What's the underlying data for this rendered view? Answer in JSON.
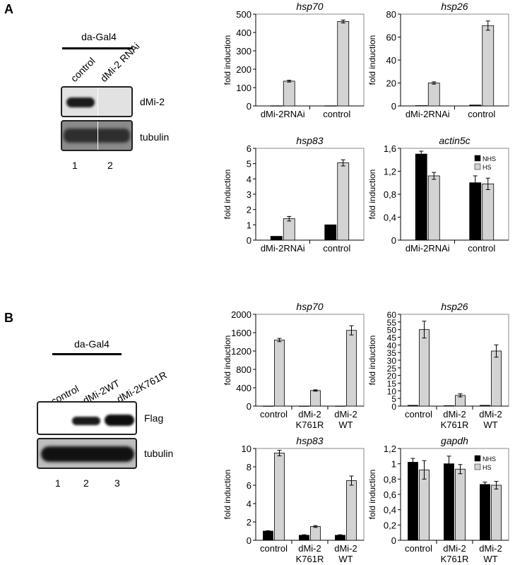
{
  "panelA": {
    "letter": "A",
    "blot": {
      "title": "da-Gal4",
      "lanes": [
        "control",
        "dMi-2 RNAi"
      ],
      "rows": [
        "dMi-2",
        "tubulin"
      ],
      "lane_numbers": [
        "1",
        "2"
      ]
    }
  },
  "panelB": {
    "letter": "B",
    "blot": {
      "title": "da-Gal4",
      "lanes": [
        "control",
        "dMi-2WT",
        "dMi-2K761R"
      ],
      "rows": [
        "Flag",
        "tubulin"
      ],
      "lane_numbers": [
        "1",
        "2",
        "3"
      ]
    }
  },
  "colors": {
    "nhs": "#000000",
    "hs": "#d3d3d3"
  },
  "chart_data": [
    {
      "type": "bar",
      "title": "hsp70",
      "ylabel": "fold induction",
      "categories": [
        "dMi-2RNAi",
        "control"
      ],
      "ylim": [
        0,
        500
      ],
      "yticks": [
        "0",
        "100",
        "200",
        "300",
        "400",
        "500"
      ],
      "ytick_values": [
        0,
        100,
        200,
        300,
        400,
        500
      ],
      "series": [
        {
          "values": [
            1,
            1
          ],
          "errors": [
            0,
            0
          ]
        },
        {
          "values": [
            135,
            460
          ],
          "errors": [
            5,
            8
          ]
        }
      ]
    },
    {
      "type": "bar",
      "title": "hsp26",
      "ylabel": "fold induction",
      "categories": [
        "dMi-2RNAi",
        "control"
      ],
      "ylim": [
        0,
        80
      ],
      "yticks": [
        "0",
        "20",
        "40",
        "60",
        "80"
      ],
      "ytick_values": [
        0,
        20,
        40,
        60,
        80
      ],
      "series": [
        {
          "values": [
            0.3,
            0.8
          ],
          "errors": [
            0,
            0
          ]
        },
        {
          "values": [
            20,
            70
          ],
          "errors": [
            1,
            4
          ]
        }
      ]
    },
    {
      "type": "bar",
      "title": "hsp83",
      "ylabel": "fold induction",
      "categories": [
        "dMi-2RNAi",
        "control"
      ],
      "ylim": [
        0,
        6
      ],
      "yticks": [
        "0",
        "1",
        "2",
        "3",
        "4",
        "5",
        "6"
      ],
      "ytick_values": [
        0,
        1,
        2,
        3,
        4,
        5,
        6
      ],
      "series": [
        {
          "values": [
            0.25,
            1.0
          ],
          "errors": [
            0,
            0
          ]
        },
        {
          "values": [
            1.4,
            5.05
          ],
          "errors": [
            0.15,
            0.2
          ]
        }
      ]
    },
    {
      "type": "bar",
      "title": "actin5c",
      "ylabel": "fold induction",
      "categories": [
        "dMi-2RNAi",
        "control"
      ],
      "ylim": [
        0,
        1.6
      ],
      "yticks": [
        "0",
        "0,4",
        "0,8",
        "1,2",
        "1,6"
      ],
      "ytick_values": [
        0,
        0.4,
        0.8,
        1.2,
        1.6
      ],
      "legend": [
        "NHS",
        "HS"
      ],
      "legend_position": "top-right",
      "series": [
        {
          "name": "NHS",
          "values": [
            1.5,
            1.0
          ],
          "errors": [
            0.05,
            0.12
          ]
        },
        {
          "name": "HS",
          "values": [
            1.12,
            0.98
          ],
          "errors": [
            0.06,
            0.1
          ]
        }
      ]
    },
    {
      "type": "bar",
      "title": "hsp70",
      "ylabel": "fold induction",
      "categories": [
        "control",
        "dMi-2\nK761R",
        "dMi-2\nWT"
      ],
      "ylim": [
        0,
        2000
      ],
      "yticks": [
        "0",
        "400",
        "800",
        "1200",
        "1600",
        "2000"
      ],
      "ytick_values": [
        0,
        400,
        800,
        1200,
        1600,
        2000
      ],
      "series": [
        {
          "values": [
            2,
            1,
            2
          ],
          "errors": [
            0,
            0,
            0
          ]
        },
        {
          "values": [
            1440,
            340,
            1650
          ],
          "errors": [
            35,
            15,
            100
          ]
        }
      ]
    },
    {
      "type": "bar",
      "title": "hsp26",
      "ylabel": "fold induction",
      "categories": [
        "control",
        "dMi-2\nK761R",
        "dMi-2\nWT"
      ],
      "ylim": [
        0,
        60
      ],
      "yticks": [
        "0",
        "5",
        "10",
        "15",
        "20",
        "25",
        "30",
        "35",
        "40",
        "45",
        "50",
        "55",
        "60"
      ],
      "ytick_values": [
        0,
        5,
        10,
        15,
        20,
        25,
        30,
        35,
        40,
        45,
        50,
        55,
        60
      ],
      "series": [
        {
          "values": [
            0.5,
            0.3,
            0.5
          ],
          "errors": [
            0,
            0,
            0
          ]
        },
        {
          "values": [
            50,
            7,
            36
          ],
          "errors": [
            5.5,
            1,
            4
          ]
        }
      ]
    },
    {
      "type": "bar",
      "title": "hsp83",
      "ylabel": "fold induction",
      "categories": [
        "control",
        "dMi-2\nK761R",
        "dMi-2\nWT"
      ],
      "ylim": [
        0,
        10
      ],
      "yticks": [
        "0",
        "2",
        "4",
        "6",
        "8",
        "10"
      ],
      "ytick_values": [
        0,
        2,
        4,
        6,
        8,
        10
      ],
      "series": [
        {
          "values": [
            1.0,
            0.55,
            0.55
          ],
          "errors": [
            0.05,
            0.05,
            0.05
          ]
        },
        {
          "values": [
            9.5,
            1.5,
            6.5
          ],
          "errors": [
            0.3,
            0.1,
            0.5
          ]
        }
      ]
    },
    {
      "type": "bar",
      "title": "gapdh",
      "ylabel": "fold induction",
      "categories": [
        "control",
        "dMi-2\nK761R",
        "dMi-2\nWT"
      ],
      "ylim": [
        0,
        1.2
      ],
      "yticks": [
        "0",
        "0,2",
        "0,4",
        "0,6",
        "0,8",
        "1",
        "1,2"
      ],
      "ytick_values": [
        0,
        0.2,
        0.4,
        0.6,
        0.8,
        1,
        1.2
      ],
      "legend": [
        "NHS",
        "HS"
      ],
      "legend_position": "top-right",
      "series": [
        {
          "name": "NHS",
          "values": [
            1.02,
            1.0,
            0.73
          ],
          "errors": [
            0.05,
            0.1,
            0.03
          ]
        },
        {
          "name": "HS",
          "values": [
            0.92,
            0.93,
            0.72
          ],
          "errors": [
            0.12,
            0.06,
            0.05
          ]
        }
      ]
    }
  ]
}
